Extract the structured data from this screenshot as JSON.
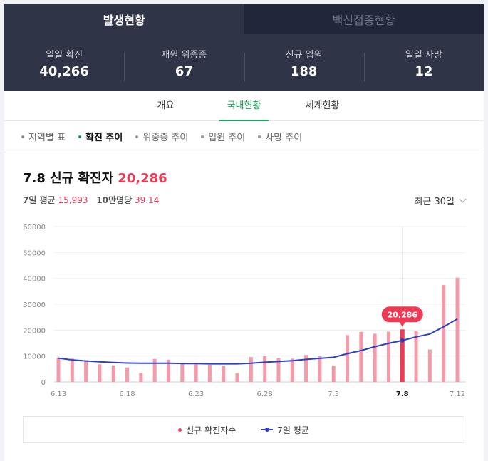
{
  "top_tabs": [
    {
      "label": "발생현황",
      "active": true
    },
    {
      "label": "백신접종현황",
      "active": false
    }
  ],
  "stats": [
    {
      "label": "일일 확진",
      "value": "40,266"
    },
    {
      "label": "재원 위중증",
      "value": "67"
    },
    {
      "label": "신규 입원",
      "value": "188"
    },
    {
      "label": "일일 사망",
      "value": "12"
    }
  ],
  "sub_tabs": [
    {
      "label": "개요",
      "active": false
    },
    {
      "label": "국내현황",
      "active": true
    },
    {
      "label": "세계현황",
      "active": false
    }
  ],
  "filters": [
    {
      "label": "지역별 표",
      "active": false
    },
    {
      "label": "확진 추이",
      "active": true
    },
    {
      "label": "위중증 추이",
      "active": false
    },
    {
      "label": "입원 추이",
      "active": false
    },
    {
      "label": "사망 추이",
      "active": false
    }
  ],
  "chart_header": {
    "title": "7.8 신규 확진자",
    "highlight": "20,286",
    "avg_label": "7일 평균",
    "avg_value": "15,993",
    "per100k_label": "10만명당",
    "per100k_value": "39.14",
    "period": "최근 30일"
  },
  "chart_data": {
    "type": "bar",
    "ylim": [
      0,
      60000
    ],
    "yticks": [
      "60000",
      "50000",
      "40000",
      "30000",
      "20000",
      "10000",
      "0"
    ],
    "x_tick_labels": [
      {
        "index": 0,
        "label": "6.13",
        "bold": false
      },
      {
        "index": 5,
        "label": "6.18",
        "bold": false
      },
      {
        "index": 10,
        "label": "6.23",
        "bold": false
      },
      {
        "index": 15,
        "label": "6.28",
        "bold": false
      },
      {
        "index": 20,
        "label": "7.3",
        "bold": false
      },
      {
        "index": 25,
        "label": "7.8",
        "bold": true
      },
      {
        "index": 29,
        "label": "7.12",
        "bold": false
      }
    ],
    "highlight_index": 25,
    "tooltip": "20,286",
    "series": [
      {
        "name": "신규 확진자수",
        "color": "#f59aa9",
        "highlight_color": "#ee3a55",
        "values": [
          9400,
          9000,
          7900,
          6800,
          6400,
          5600,
          3400,
          8900,
          8600,
          7000,
          6800,
          6600,
          6200,
          3400,
          9600,
          10000,
          9200,
          9000,
          10400,
          9900,
          6200,
          18100,
          19300,
          18600,
          19400,
          20286,
          19700,
          12500,
          37400,
          40266
        ]
      },
      {
        "name": "7일 평균",
        "color": "#2d3fc7",
        "values": [
          9200,
          8500,
          8100,
          7800,
          7500,
          7300,
          7200,
          7200,
          7200,
          7100,
          7100,
          7000,
          7000,
          7000,
          7200,
          7600,
          7900,
          8200,
          8700,
          9100,
          9500,
          10900,
          12100,
          13600,
          14900,
          15993,
          17400,
          18500,
          21300,
          24300
        ]
      }
    ]
  },
  "legend": {
    "items": [
      "신규 확진자수",
      "7일 평균"
    ]
  }
}
